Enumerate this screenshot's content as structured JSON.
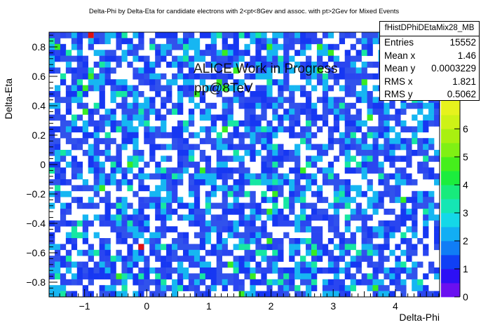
{
  "chart_data": {
    "type": "heatmap",
    "title": "Delta-Phi by Delta-Eta for candidate electrons with 2<pt<8Gev and assoc. with pt>2Gev for Mixed Events",
    "xlabel": "Delta-Phi",
    "ylabel": "Delta-Eta",
    "xlim": [
      -1.571,
      4.712
    ],
    "ylim": [
      -0.9,
      0.9
    ],
    "x_ticks": [
      "−1",
      "0",
      "1",
      "2",
      "3",
      "4"
    ],
    "x_tick_values": [
      -1,
      0,
      1,
      2,
      3,
      4
    ],
    "y_ticks": [
      "−0.8",
      "−0.6",
      "−0.4",
      "−0.2",
      "0",
      "0.2",
      "0.4",
      "0.6",
      "0.8"
    ],
    "y_tick_values": [
      -0.8,
      -0.6,
      -0.4,
      -0.2,
      0,
      0.2,
      0.4,
      0.6,
      0.8
    ],
    "nx_bins": 70,
    "ny_bins": 45,
    "z_range": [
      0,
      7
    ],
    "z_ticks": [
      "0",
      "1",
      "2",
      "3",
      "4",
      "5",
      "6"
    ],
    "z_tick_values": [
      0,
      1,
      2,
      3,
      4,
      5,
      6
    ],
    "bin_content_distribution": {
      "0": 0.31,
      "1": 0.47,
      "2": 0.17,
      "3": 0.04,
      "4": 0.01
    },
    "grid": false,
    "annotations": [
      "ALICE Work in Progress",
      "pp@8TeV"
    ]
  },
  "stats": {
    "title": "fHistDPhiDEtaMix28_MB",
    "rows": [
      {
        "label": "Entries",
        "value": "15552"
      },
      {
        "label": "Mean x",
        "value": "1.46"
      },
      {
        "label": "Mean y",
        "value": "0.0003229"
      },
      {
        "label": "RMS x",
        "value": "1.821"
      },
      {
        "label": "RMS y",
        "value": "0.5062"
      }
    ]
  },
  "colors": {
    "palette": [
      "#ffffff",
      "#1f3df5",
      "#16b6f2",
      "#17e7a2",
      "#38ec22",
      "#a9f00f",
      "#e7f21e",
      "#f4e51c"
    ],
    "overflow_red": "#e01010",
    "frame": "#000000"
  }
}
